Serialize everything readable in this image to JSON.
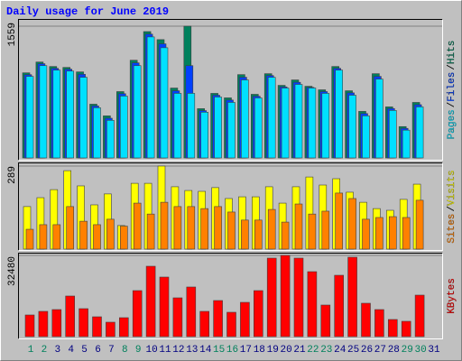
{
  "chart_data": [
    {
      "type": "bar",
      "title": "Daily usage for June 2019",
      "categories": [
        "1",
        "2",
        "3",
        "4",
        "5",
        "6",
        "7",
        "8",
        "9",
        "10",
        "11",
        "12",
        "13",
        "14",
        "15",
        "16",
        "17",
        "18",
        "19",
        "20",
        "21",
        "22",
        "23",
        "24",
        "25",
        "26",
        "27",
        "28",
        "29",
        "30",
        "31"
      ],
      "label_colors": [
        "#00805c",
        "#00805c",
        "#000080",
        "#000080",
        "#000080",
        "#000080",
        "#000080",
        "#00805c",
        "#00805c",
        "#000080",
        "#000080",
        "#000080",
        "#000080",
        "#000080",
        "#00805c",
        "#00805c",
        "#000080",
        "#000080",
        "#000080",
        "#000080",
        "#000080",
        "#00805c",
        "#00805c",
        "#000080",
        "#000080",
        "#000080",
        "#000080",
        "#000080",
        "#00805c",
        "#00805c",
        "#000080"
      ],
      "ylim": [
        0,
        1559
      ],
      "yticks": [
        1559
      ],
      "legend_separator": "/",
      "series": [
        {
          "name": "Hits",
          "color": "#00805c",
          "values": [
            1007,
            1135,
            1082,
            1071,
            1018,
            636,
            498,
            785,
            1156,
            1495,
            1400,
            827,
            1559,
            583,
            764,
            711,
            986,
            753,
            997,
            859,
            923,
            848,
            806,
            1082,
            795,
            551,
            997,
            604,
            371,
            657,
            0
          ]
        },
        {
          "name": "Files",
          "color": "#0040ff",
          "values": [
            985,
            1115,
            1060,
            1050,
            990,
            615,
            470,
            760,
            1125,
            1465,
            1350,
            795,
            1092,
            560,
            742,
            685,
            955,
            730,
            975,
            840,
            895,
            835,
            785,
            1060,
            770,
            525,
            965,
            585,
            350,
            630,
            0
          ]
        },
        {
          "name": "Pages",
          "color": "#00e0ff",
          "values": [
            965,
            1092,
            1039,
            1028,
            954,
            594,
            445,
            732,
            1092,
            1432,
            1304,
            764,
            764,
            541,
            721,
            657,
            923,
            710,
            954,
            827,
            870,
            827,
            764,
            1039,
            742,
            498,
            933,
            562,
            329,
            604,
            0
          ]
        }
      ]
    },
    {
      "type": "bar",
      "ylim": [
        0,
        289
      ],
      "yticks": [
        289
      ],
      "legend_separator": "/",
      "series": [
        {
          "name": "Visits",
          "color": "#ffff00",
          "values": [
            148,
            179,
            207,
            273,
            220,
            154,
            192,
            82,
            229,
            229,
            289,
            217,
            204,
            201,
            214,
            176,
            182,
            182,
            217,
            160,
            217,
            251,
            223,
            245,
            198,
            163,
            141,
            135,
            173,
            226,
            0
          ]
        },
        {
          "name": "Sites",
          "color": "#ff8000",
          "values": [
            69,
            85,
            85,
            148,
            97,
            85,
            104,
            80,
            160,
            122,
            163,
            148,
            148,
            141,
            148,
            129,
            101,
            101,
            138,
            94,
            157,
            122,
            132,
            195,
            176,
            104,
            110,
            113,
            110,
            170,
            0
          ]
        }
      ]
    },
    {
      "type": "bar",
      "ylim": [
        0,
        32480
      ],
      "yticks": [
        32480
      ],
      "series": [
        {
          "name": "KBytes",
          "color": "#ff0000",
          "values": [
            8662,
            10105,
            10827,
            16240,
            11188,
            7940,
            5774,
            7579,
            18405,
            28149,
            23819,
            15518,
            19849,
            10105,
            14436,
            9744,
            13713,
            18405,
            31397,
            32480,
            31397,
            25984,
            12631,
            24540,
            31758,
            13353,
            10827,
            6857,
            6135,
            16601,
            0
          ]
        }
      ]
    }
  ]
}
